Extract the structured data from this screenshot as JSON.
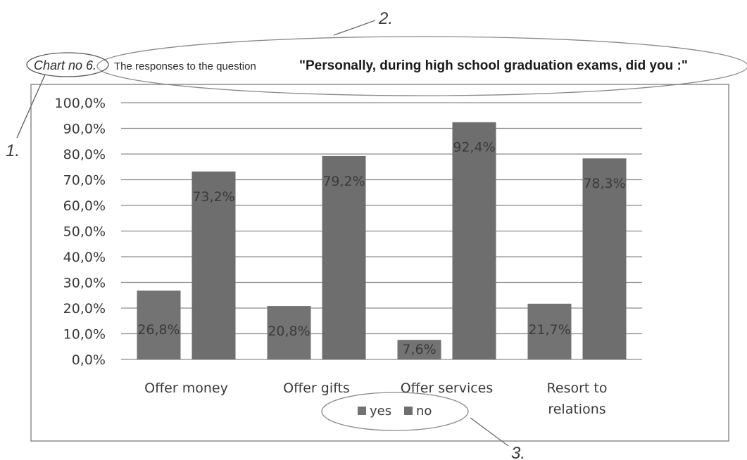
{
  "annotations": {
    "marker_1": "1.",
    "marker_2": "2.",
    "marker_3": "3."
  },
  "title": {
    "label": "Chart no 6.",
    "intro": "The responses to the question",
    "question": "\"Personally, during high school graduation exams, did you :\""
  },
  "chart_data": {
    "type": "bar",
    "categories": [
      [
        "Offer money"
      ],
      [
        "Offer gifts"
      ],
      [
        "Offer services"
      ],
      [
        "Resort to",
        "relations"
      ]
    ],
    "series": [
      {
        "name": "yes",
        "values": [
          26.8,
          20.8,
          7.6,
          21.7
        ],
        "labels": [
          "26,8%",
          "20,8%",
          "7,6%",
          "21,7%"
        ]
      },
      {
        "name": "no",
        "values": [
          73.2,
          79.2,
          92.4,
          78.3
        ],
        "labels": [
          "73,2%",
          "79,2%",
          "92,4%",
          "78,3%"
        ]
      }
    ],
    "ylim": [
      0,
      100
    ],
    "yticks": [
      {
        "value": 0,
        "label": "0,0%"
      },
      {
        "value": 10,
        "label": "10,0%"
      },
      {
        "value": 20,
        "label": "20,0%"
      },
      {
        "value": 30,
        "label": "30,0%"
      },
      {
        "value": 40,
        "label": "40,0%"
      },
      {
        "value": 50,
        "label": "50,0%"
      },
      {
        "value": 60,
        "label": "60,0%"
      },
      {
        "value": 70,
        "label": "70,0%"
      },
      {
        "value": 80,
        "label": "80,0%"
      },
      {
        "value": 90,
        "label": "90,0%"
      },
      {
        "value": 100,
        "label": "100,0%"
      }
    ],
    "grid": true,
    "legend": "bottom-center",
    "colors": {
      "yes": "#737373",
      "no": "#6e6e6e",
      "grid": "#8c8c8c",
      "frame": "#7a7a7a"
    }
  }
}
